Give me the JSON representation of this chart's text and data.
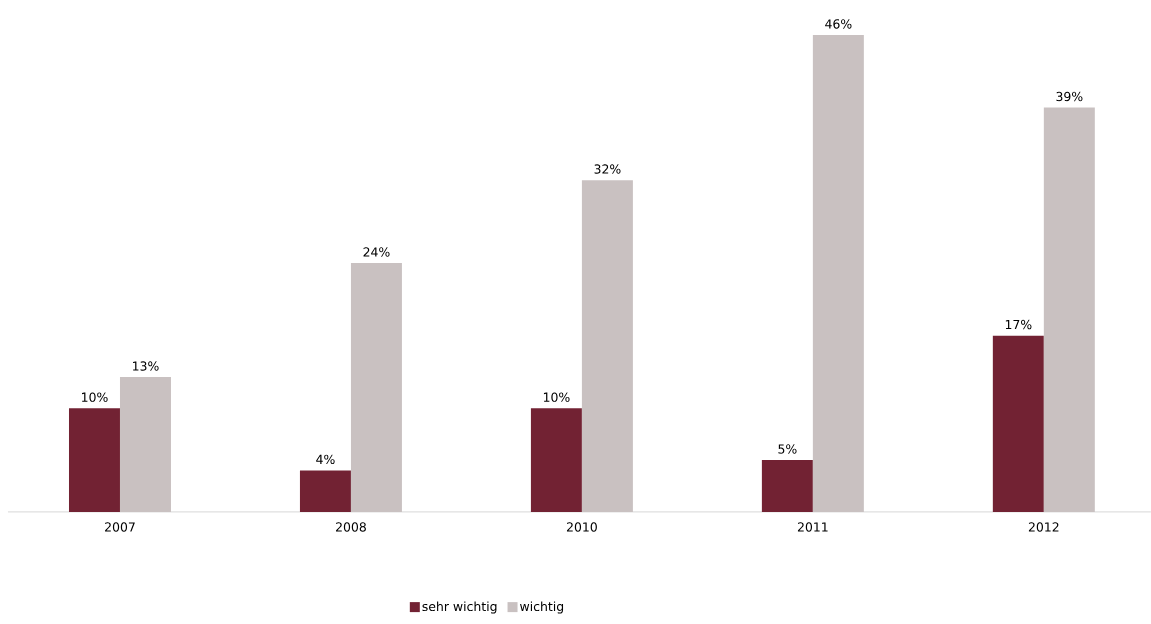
{
  "chart_data": {
    "type": "bar",
    "categories": [
      "2007",
      "2008",
      "2010",
      "2011",
      "2012"
    ],
    "series": [
      {
        "name": "sehr wichtig",
        "color": "#722233",
        "values": [
          10,
          4,
          10,
          5,
          17
        ],
        "value_labels": [
          "10%",
          "4%",
          "10%",
          "5%",
          "17%"
        ]
      },
      {
        "name": "wichtig",
        "color": "#c9c1c1",
        "values": [
          13,
          24,
          32,
          46,
          39
        ],
        "value_labels": [
          "13%",
          "24%",
          "32%",
          "46%",
          "39%"
        ]
      }
    ],
    "legend": "bottom"
  }
}
